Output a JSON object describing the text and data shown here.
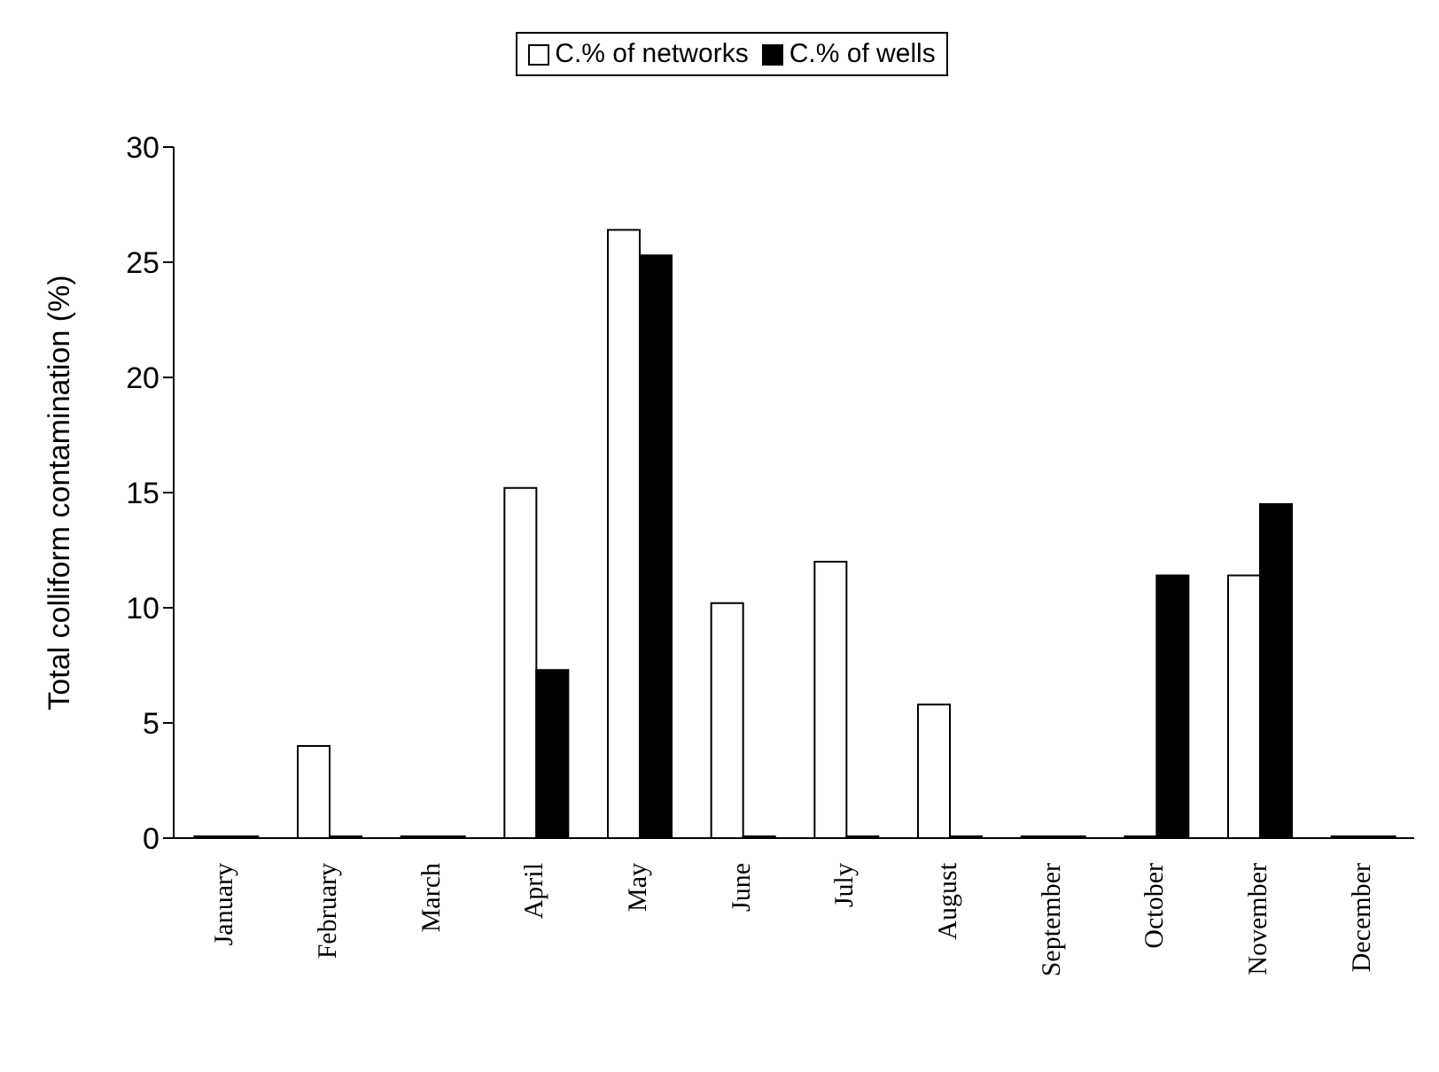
{
  "chart_data": {
    "type": "bar",
    "ylabel": "Total colliform contamination (%)",
    "categories": [
      "January",
      "February",
      "March",
      "April",
      "May",
      "June",
      "July",
      "August",
      "September",
      "October",
      "November",
      "December"
    ],
    "series": [
      {
        "name": "C.% of networks",
        "color": "#ffffff",
        "values": [
          0,
          4,
          0,
          15.2,
          26.4,
          10.2,
          12,
          5.8,
          0,
          0,
          11.4,
          0
        ]
      },
      {
        "name": "C.% of wells",
        "color": "#000000",
        "values": [
          0,
          0,
          0,
          7.3,
          25.3,
          0,
          0,
          0,
          0,
          11.4,
          14.5,
          0
        ]
      }
    ],
    "ylim": [
      0,
      30
    ],
    "yticks": [
      0,
      5,
      10,
      15,
      20,
      25,
      30
    ],
    "grid": false,
    "legend": "top"
  }
}
